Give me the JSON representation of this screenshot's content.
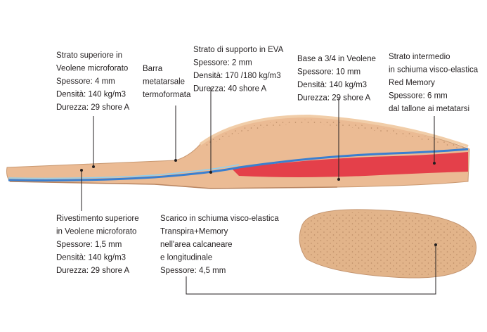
{
  "labels": [
    {
      "lines": [
        "Strato superiore in",
        "Veolene microforato",
        "Spessore: 4 mm",
        "Densità: 140 kg/m3",
        "Durezza: 29 shore  A"
      ]
    },
    {
      "lines": [
        "Barra",
        "metatarsale",
        "termoformata"
      ]
    },
    {
      "lines": [
        "Strato di supporto in EVA",
        "Spessore: 2 mm",
        "Densità: 170 /180 kg/m3",
        "Durezza: 40 shore A"
      ]
    },
    {
      "lines": [
        "Base a 3/4 in Veolene",
        "Spessore: 10 mm",
        "Densità: 140 kg/m3",
        "Durezza: 29 shore A"
      ]
    },
    {
      "lines": [
        "Strato intermedio",
        "in schiuma visco-elastica",
        "Red Memory",
        "Spessore: 6 mm",
        "dal tallone ai metatarsi"
      ]
    },
    {
      "lines": [
        "Rivestimento superiore",
        "in Veolene microforato",
        "Spessore: 1,5 mm",
        "Densità: 140 kg/m3",
        "Durezza: 29 shore  A"
      ]
    },
    {
      "lines": [
        "Scarico in schiuma visco-elastica",
        "Transpira+Memory",
        "nell'area calcaneare",
        "e longitudinale",
        "Spessore: 4,5 mm"
      ]
    }
  ]
}
